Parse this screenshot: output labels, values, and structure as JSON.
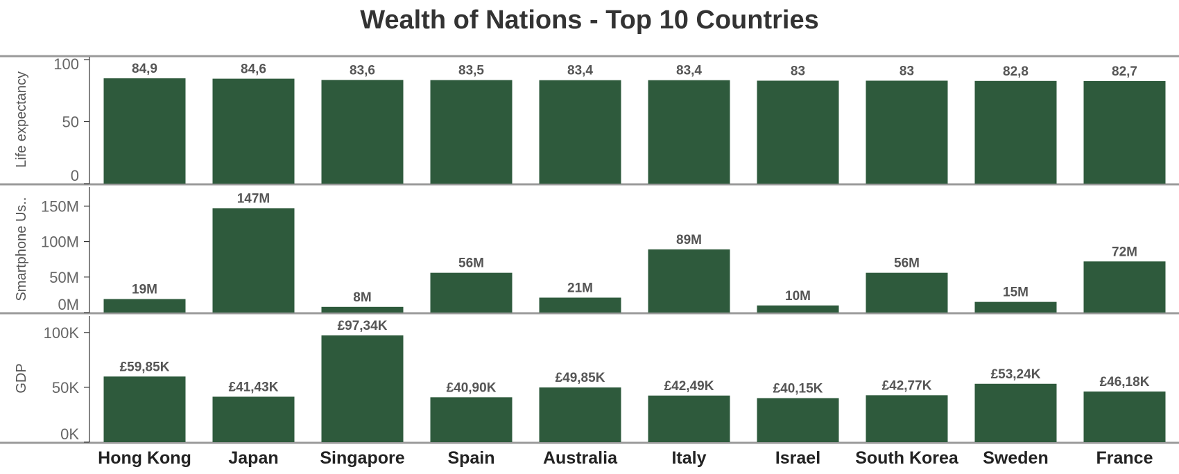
{
  "chart_data": {
    "type": "bar",
    "title": "Wealth of Nations - Top 10 Countries",
    "categories": [
      "Hong Kong",
      "Japan",
      "Singapore",
      "Spain",
      "Australia",
      "Italy",
      "Israel",
      "South Korea",
      "Sweden",
      "France"
    ],
    "bar_color": "#2e5a3c",
    "panels": [
      {
        "name": "Life expectancy",
        "ylabel": "Life expectancy",
        "ylim": [
          0,
          100
        ],
        "ticks": [
          0,
          50,
          100
        ],
        "tick_labels": [
          "0",
          "50",
          "100"
        ],
        "values": [
          84.9,
          84.6,
          83.6,
          83.5,
          83.4,
          83.4,
          83,
          83,
          82.8,
          82.7
        ],
        "labels": [
          "84,9",
          "84,6",
          "83,6",
          "83,5",
          "83,4",
          "83,4",
          "83",
          "83",
          "82,8",
          "82,7"
        ]
      },
      {
        "name": "Smartphone Users",
        "ylabel": "Smartphone Us..",
        "ylim": [
          0,
          165000000
        ],
        "ticks": [
          0,
          50000000,
          100000000,
          150000000
        ],
        "tick_labels": [
          "0M",
          "50M",
          "100M",
          "150M"
        ],
        "values": [
          19000000,
          147000000,
          8000000,
          56000000,
          21000000,
          89000000,
          10000000,
          56000000,
          15000000,
          72000000
        ],
        "labels": [
          "19M",
          "147M",
          "8M",
          "56M",
          "21M",
          "89M",
          "10M",
          "56M",
          "15M",
          "72M"
        ]
      },
      {
        "name": "GDP",
        "ylabel": "GDP",
        "ylim": [
          0,
          110000
        ],
        "ticks": [
          0,
          50000,
          100000
        ],
        "tick_labels": [
          "0K",
          "50K",
          "100K"
        ],
        "values": [
          59850,
          41430,
          97340,
          40900,
          49850,
          42490,
          40150,
          42770,
          53240,
          46180
        ],
        "labels": [
          "£59,85K",
          "£41,43K",
          "£97,34K",
          "£40,90K",
          "£49,85K",
          "£42,49K",
          "£40,15K",
          "£42,77K",
          "£53,24K",
          "£46,18K"
        ]
      }
    ]
  }
}
